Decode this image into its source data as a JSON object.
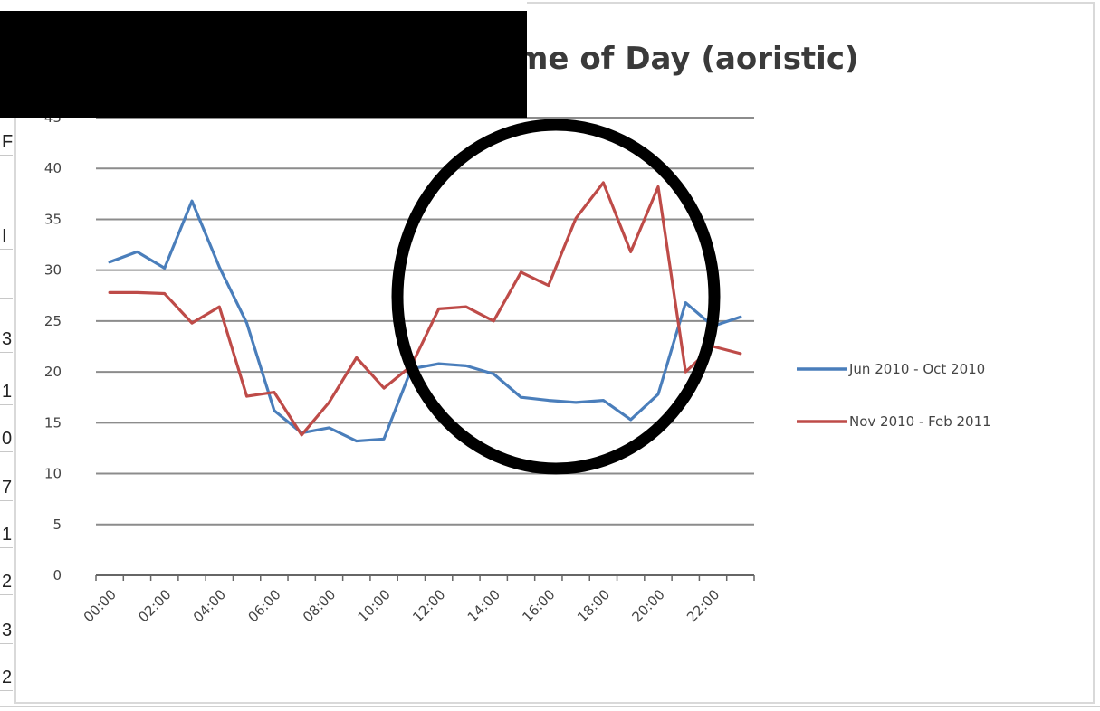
{
  "left_column": {
    "cells": [
      "F",
      "I",
      "",
      "3",
      "1",
      "0",
      "7",
      "1",
      "2",
      "3",
      "2"
    ]
  },
  "chart_data": {
    "type": "line",
    "title": "Burglaries by Time of Day (aoristic)",
    "xlabel": "",
    "ylabel": "",
    "ylim": [
      0,
      45
    ],
    "yticks": [
      0,
      5,
      10,
      15,
      20,
      25,
      30,
      35,
      40,
      45
    ],
    "grid": true,
    "legend_position": "right",
    "x": [
      "00:00",
      "01:00",
      "02:00",
      "03:00",
      "04:00",
      "05:00",
      "06:00",
      "07:00",
      "08:00",
      "09:00",
      "10:00",
      "11:00",
      "12:00",
      "13:00",
      "14:00",
      "15:00",
      "16:00",
      "17:00",
      "18:00",
      "19:00",
      "20:00",
      "21:00",
      "22:00",
      "23:00"
    ],
    "xtick_labels": [
      "00:00",
      "02:00",
      "04:00",
      "06:00",
      "08:00",
      "10:00",
      "12:00",
      "14:00",
      "16:00",
      "18:00",
      "20:00",
      "22:00"
    ],
    "series": [
      {
        "name": "Jun 2010 - Oct 2010",
        "color": "#4a7ebb",
        "values": [
          30.8,
          31.8,
          30.2,
          36.8,
          30.3,
          24.8,
          16.2,
          14.0,
          14.5,
          13.2,
          13.4,
          20.3,
          20.8,
          20.6,
          19.8,
          17.5,
          17.2,
          17.0,
          17.2,
          15.3,
          17.8,
          26.8,
          24.5,
          25.4
        ]
      },
      {
        "name": "Nov 2010 - Feb 2011",
        "color": "#be4b48",
        "values": [
          27.8,
          27.8,
          27.7,
          24.8,
          26.4,
          17.6,
          18.0,
          13.8,
          17.0,
          21.4,
          18.4,
          20.6,
          26.2,
          26.4,
          25.0,
          29.8,
          28.5,
          35.1,
          38.6,
          31.8,
          38.2,
          20.0,
          22.5,
          21.8
        ]
      }
    ],
    "annotation": {
      "shape": "ellipse",
      "color": "#000000"
    }
  }
}
